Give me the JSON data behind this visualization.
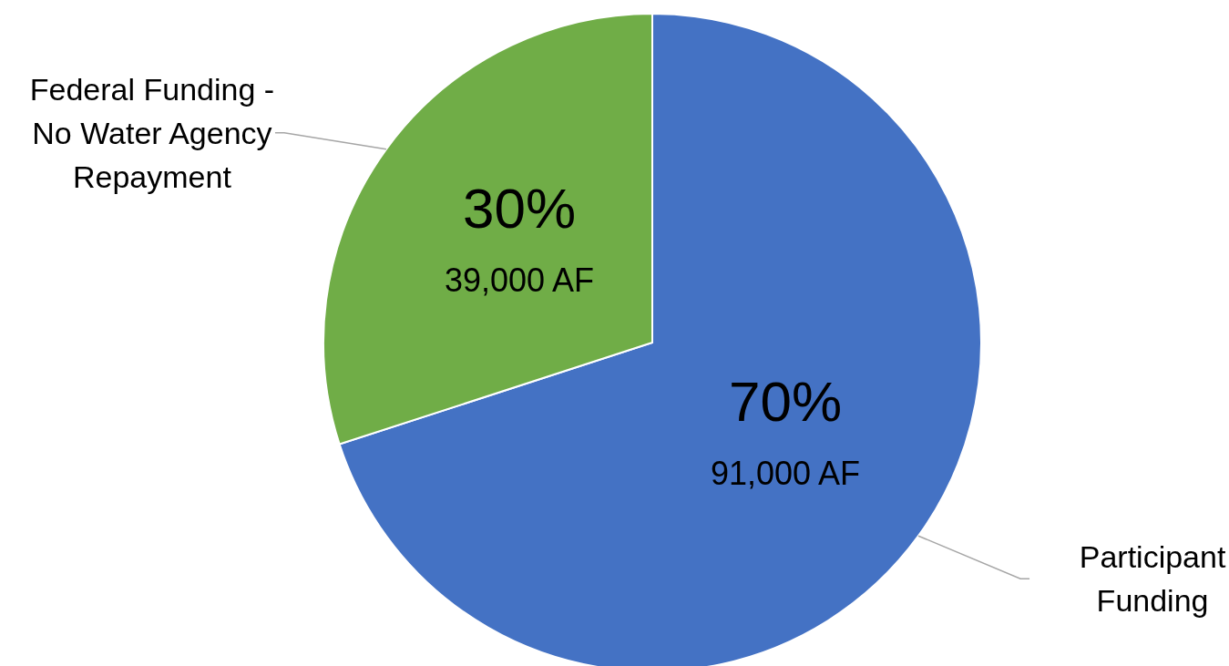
{
  "chart_data": {
    "type": "pie",
    "categories": [
      "Participant Funding",
      "Federal Funding - No Water Agency Repayment"
    ],
    "values": [
      70,
      30
    ],
    "colors": [
      "#4472c4",
      "#70ad47"
    ],
    "value_labels": [
      "70%\n91,000 AF",
      "30%\n39,000 AF"
    ],
    "legend": false
  }
}
